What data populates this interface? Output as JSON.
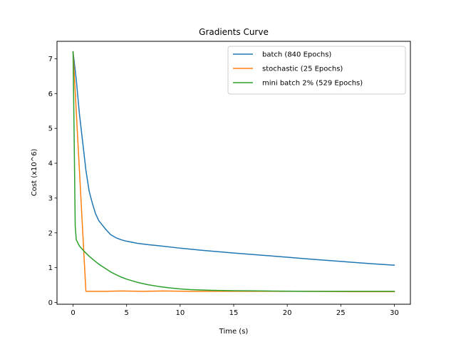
{
  "chart_data": {
    "type": "line",
    "title": "Gradients Curve",
    "xlabel": "Time (s)",
    "ylabel": "Cost (x10^6)",
    "xlim": [
      -1.5,
      31.5
    ],
    "ylim": [
      -0.05,
      7.5
    ],
    "xticks": [
      0,
      5,
      10,
      15,
      20,
      25,
      30
    ],
    "yticks": [
      0,
      1,
      2,
      3,
      4,
      5,
      6,
      7
    ],
    "legend_position": "top-right",
    "grid": false,
    "series": [
      {
        "name": "batch (840 Epochs)",
        "color": "#1f77b4",
        "points": [
          [
            0.0,
            7.2
          ],
          [
            0.3,
            6.4
          ],
          [
            0.6,
            5.4
          ],
          [
            0.9,
            4.6
          ],
          [
            1.2,
            3.8
          ],
          [
            1.5,
            3.2
          ],
          [
            1.8,
            2.85
          ],
          [
            2.1,
            2.55
          ],
          [
            2.4,
            2.35
          ],
          [
            3.0,
            2.12
          ],
          [
            3.5,
            1.95
          ],
          [
            4.0,
            1.86
          ],
          [
            4.5,
            1.8
          ],
          [
            5.0,
            1.76
          ],
          [
            6.0,
            1.7
          ],
          [
            7.0,
            1.66
          ],
          [
            8.0,
            1.63
          ],
          [
            10.0,
            1.56
          ],
          [
            12.0,
            1.5
          ],
          [
            15.0,
            1.42
          ],
          [
            18.0,
            1.35
          ],
          [
            20.0,
            1.3
          ],
          [
            22.0,
            1.25
          ],
          [
            25.0,
            1.18
          ],
          [
            28.0,
            1.11
          ],
          [
            30.0,
            1.07
          ]
        ]
      },
      {
        "name": "stochastic (25 Epochs)",
        "color": "#ff7f0e",
        "points": [
          [
            0.0,
            7.2
          ],
          [
            1.2,
            0.32
          ],
          [
            3.0,
            0.32
          ],
          [
            4.5,
            0.33
          ],
          [
            6.5,
            0.32
          ],
          [
            8.5,
            0.33
          ],
          [
            11.0,
            0.32
          ],
          [
            14.0,
            0.32
          ],
          [
            18.0,
            0.32
          ],
          [
            22.0,
            0.32
          ],
          [
            26.0,
            0.31
          ],
          [
            30.0,
            0.31
          ]
        ]
      },
      {
        "name": "mini batch 2% (529 Epochs)",
        "color": "#2ca02c",
        "points": [
          [
            0.0,
            7.2
          ],
          [
            0.1,
            4.8
          ],
          [
            0.2,
            2.2
          ],
          [
            0.3,
            1.8
          ],
          [
            0.6,
            1.62
          ],
          [
            1.0,
            1.48
          ],
          [
            1.5,
            1.33
          ],
          [
            2.0,
            1.2
          ],
          [
            2.5,
            1.08
          ],
          [
            3.0,
            0.98
          ],
          [
            3.5,
            0.88
          ],
          [
            4.0,
            0.8
          ],
          [
            4.5,
            0.73
          ],
          [
            5.0,
            0.67
          ],
          [
            6.0,
            0.58
          ],
          [
            7.0,
            0.51
          ],
          [
            8.0,
            0.46
          ],
          [
            9.0,
            0.42
          ],
          [
            10.0,
            0.39
          ],
          [
            11.0,
            0.37
          ],
          [
            12.0,
            0.36
          ],
          [
            13.0,
            0.35
          ],
          [
            15.0,
            0.34
          ],
          [
            18.0,
            0.33
          ],
          [
            22.0,
            0.32
          ],
          [
            26.0,
            0.32
          ],
          [
            30.0,
            0.32
          ]
        ]
      }
    ]
  }
}
